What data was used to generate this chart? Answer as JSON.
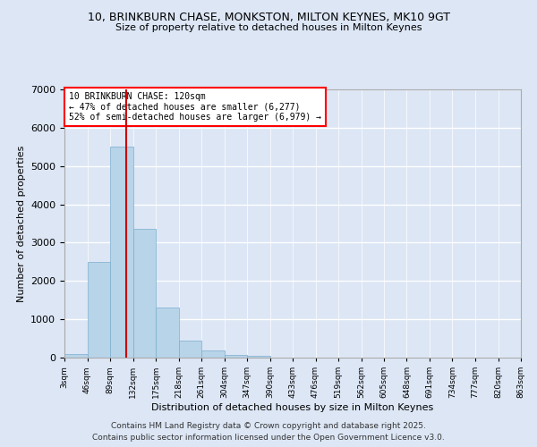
{
  "title": "10, BRINKBURN CHASE, MONKSTON, MILTON KEYNES, MK10 9GT",
  "subtitle": "Size of property relative to detached houses in Milton Keynes",
  "xlabel": "Distribution of detached houses by size in Milton Keynes",
  "ylabel": "Number of detached properties",
  "bar_values": [
    100,
    2500,
    5500,
    3350,
    1300,
    450,
    180,
    80,
    50,
    10,
    0,
    0,
    0,
    0,
    0,
    0,
    0,
    0,
    0,
    0
  ],
  "bin_edges": [
    3,
    46,
    89,
    132,
    175,
    218,
    261,
    304,
    347,
    390,
    433,
    476,
    519,
    562,
    605,
    648,
    691,
    734,
    777,
    820,
    863
  ],
  "xtick_labels": [
    "3sqm",
    "46sqm",
    "89sqm",
    "132sqm",
    "175sqm",
    "218sqm",
    "261sqm",
    "304sqm",
    "347sqm",
    "390sqm",
    "433sqm",
    "476sqm",
    "519sqm",
    "562sqm",
    "605sqm",
    "648sqm",
    "691sqm",
    "734sqm",
    "777sqm",
    "820sqm",
    "863sqm"
  ],
  "bar_color": "#b8d4e8",
  "bar_edge_color": "#7aaecf",
  "vline_x": 120,
  "vline_color": "#cc0000",
  "ylim": [
    0,
    7000
  ],
  "yticks": [
    0,
    1000,
    2000,
    3000,
    4000,
    5000,
    6000,
    7000
  ],
  "annotation_title": "10 BRINKBURN CHASE: 120sqm",
  "annotation_line1": "← 47% of detached houses are smaller (6,277)",
  "annotation_line2": "52% of semi-detached houses are larger (6,979) →",
  "bg_color": "#dce6f5",
  "grid_color": "#ffffff",
  "footer1": "Contains HM Land Registry data © Crown copyright and database right 2025.",
  "footer2": "Contains public sector information licensed under the Open Government Licence v3.0."
}
